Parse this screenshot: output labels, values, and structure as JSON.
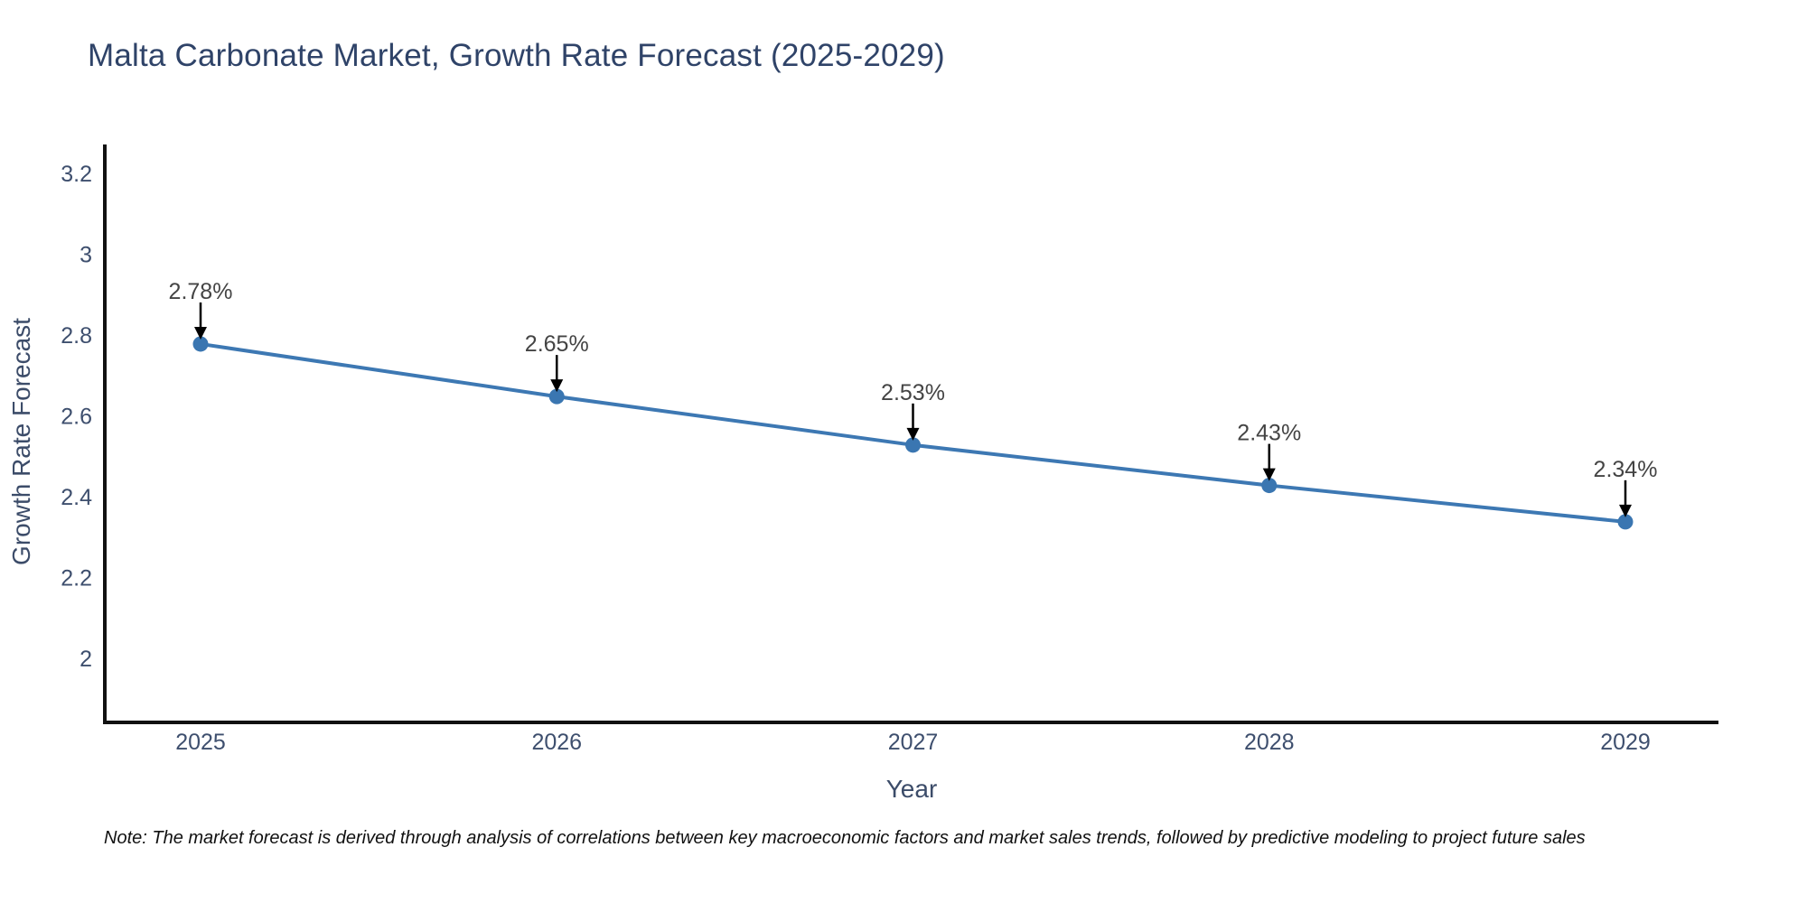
{
  "header": {
    "title": "Malta Carbonate Market, Growth Rate Forecast (2025-2029)"
  },
  "footnote": {
    "text": "Note: The market forecast is derived through analysis of correlations between key macroeconomic factors and market sales trends, followed by predictive modeling to project future sales"
  },
  "chart_data": {
    "type": "line",
    "title": "Malta Carbonate Market, Growth Rate Forecast (2025-2029)",
    "xlabel": "Year",
    "ylabel": "Growth Rate Forecast",
    "x": [
      2025,
      2026,
      2027,
      2028,
      2029
    ],
    "y": [
      2.78,
      2.65,
      2.53,
      2.43,
      2.34
    ],
    "point_labels": [
      "2.78%",
      "2.65%",
      "2.53%",
      "2.43%",
      "2.34%"
    ],
    "xtick_labels": [
      "2025",
      "2026",
      "2027",
      "2028",
      "2029"
    ],
    "yticks": [
      2,
      2.2,
      2.4,
      2.6,
      2.8,
      3,
      3.2
    ],
    "ytick_labels": [
      "2",
      "2.2",
      "2.4",
      "2.6",
      "2.8",
      "3",
      "3.2"
    ],
    "ylim": [
      1.84,
      3.27
    ],
    "grid": false,
    "legend": false,
    "annotation_style": "arrow-down-to-point",
    "colors": {
      "line": "#3d78b3",
      "marker": "#3a76b1",
      "axis": "#111111",
      "tick_label": "#3e4f6e",
      "data_label": "#444444",
      "arrow": "#000000"
    }
  }
}
